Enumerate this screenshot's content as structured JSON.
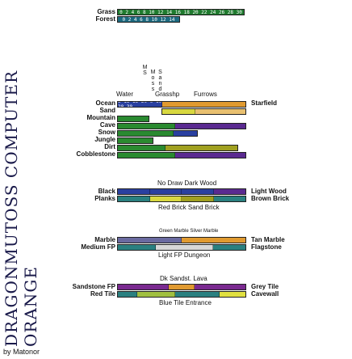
{
  "title_letters": "DRAGONMUTOSS COMPUTER ORANGE",
  "credit": "by Matonor",
  "sections": {
    "top": {
      "rows": [
        {
          "label": "Grass",
          "color": "#1f6b2a"
        },
        {
          "label": "Forest",
          "color": "#1d5660"
        }
      ],
      "ticks_grass": "0 2 4 6 8 10 12 14 16 18 20 22 24 26 28 30",
      "ticks_forest": "0 2 4 6 8 10 12 14"
    },
    "mid": {
      "header_left": "Water",
      "header_mid": "Grasshp",
      "header_right": "Furrows",
      "vertical_labels": [
        "MS",
        "Moss",
        "Sand"
      ],
      "rows": [
        {
          "label": "Ocean",
          "color": "#2a2a80",
          "right": "Starfield"
        },
        {
          "label": "Sand",
          "color": "#c8a050"
        },
        {
          "label": "Mountain",
          "color": "#606070"
        },
        {
          "label": "Cave",
          "color": "#4a2a60"
        },
        {
          "label": "Snow",
          "color": "#4a6a90"
        },
        {
          "label": "Jungle",
          "color": "#2f5a20"
        },
        {
          "label": "Dirt",
          "color": "#6a5020"
        },
        {
          "label": "Cobblestone",
          "color": "#505a60"
        }
      ],
      "ticks": "0 2 4 6 8 10 12 14 16 18 20 22 24 26 28 30",
      "ocean_ticks": "5 15 15 20 0 10 20 30"
    },
    "wood": {
      "header": "No Draw  Dark Wood",
      "rows": [
        {
          "label": "Black",
          "right": "Light Wood"
        },
        {
          "label": "Planks",
          "right": "Brown Brick"
        }
      ],
      "footer": "Red Brick  Sand Brick"
    },
    "marble": {
      "header": "Green Marble  Silver Marble",
      "rows": [
        {
          "label": "Marble",
          "right": "Tan Marble"
        },
        {
          "label": "Medium FP",
          "right": "Flagstone"
        }
      ],
      "footer": "Light FP  Dungeon"
    },
    "sandstone": {
      "header": "Dk Sandst.   Lava",
      "rows": [
        {
          "label": "Sandstone FP",
          "right": "Grey Tile"
        },
        {
          "label": "Red Tile",
          "right": "Cavewall"
        }
      ],
      "footer": "Blue Tile  Entrance"
    }
  },
  "colors": {
    "grass": "#1f7a2e",
    "forest": "#1d6a80",
    "yellow": "#d8d840",
    "orange": "#e09a30",
    "tan": "#e8c070",
    "purple": "#5a2a90",
    "blue": "#2a40a0",
    "green": "#2a8a30",
    "teal": "#2a8080"
  }
}
